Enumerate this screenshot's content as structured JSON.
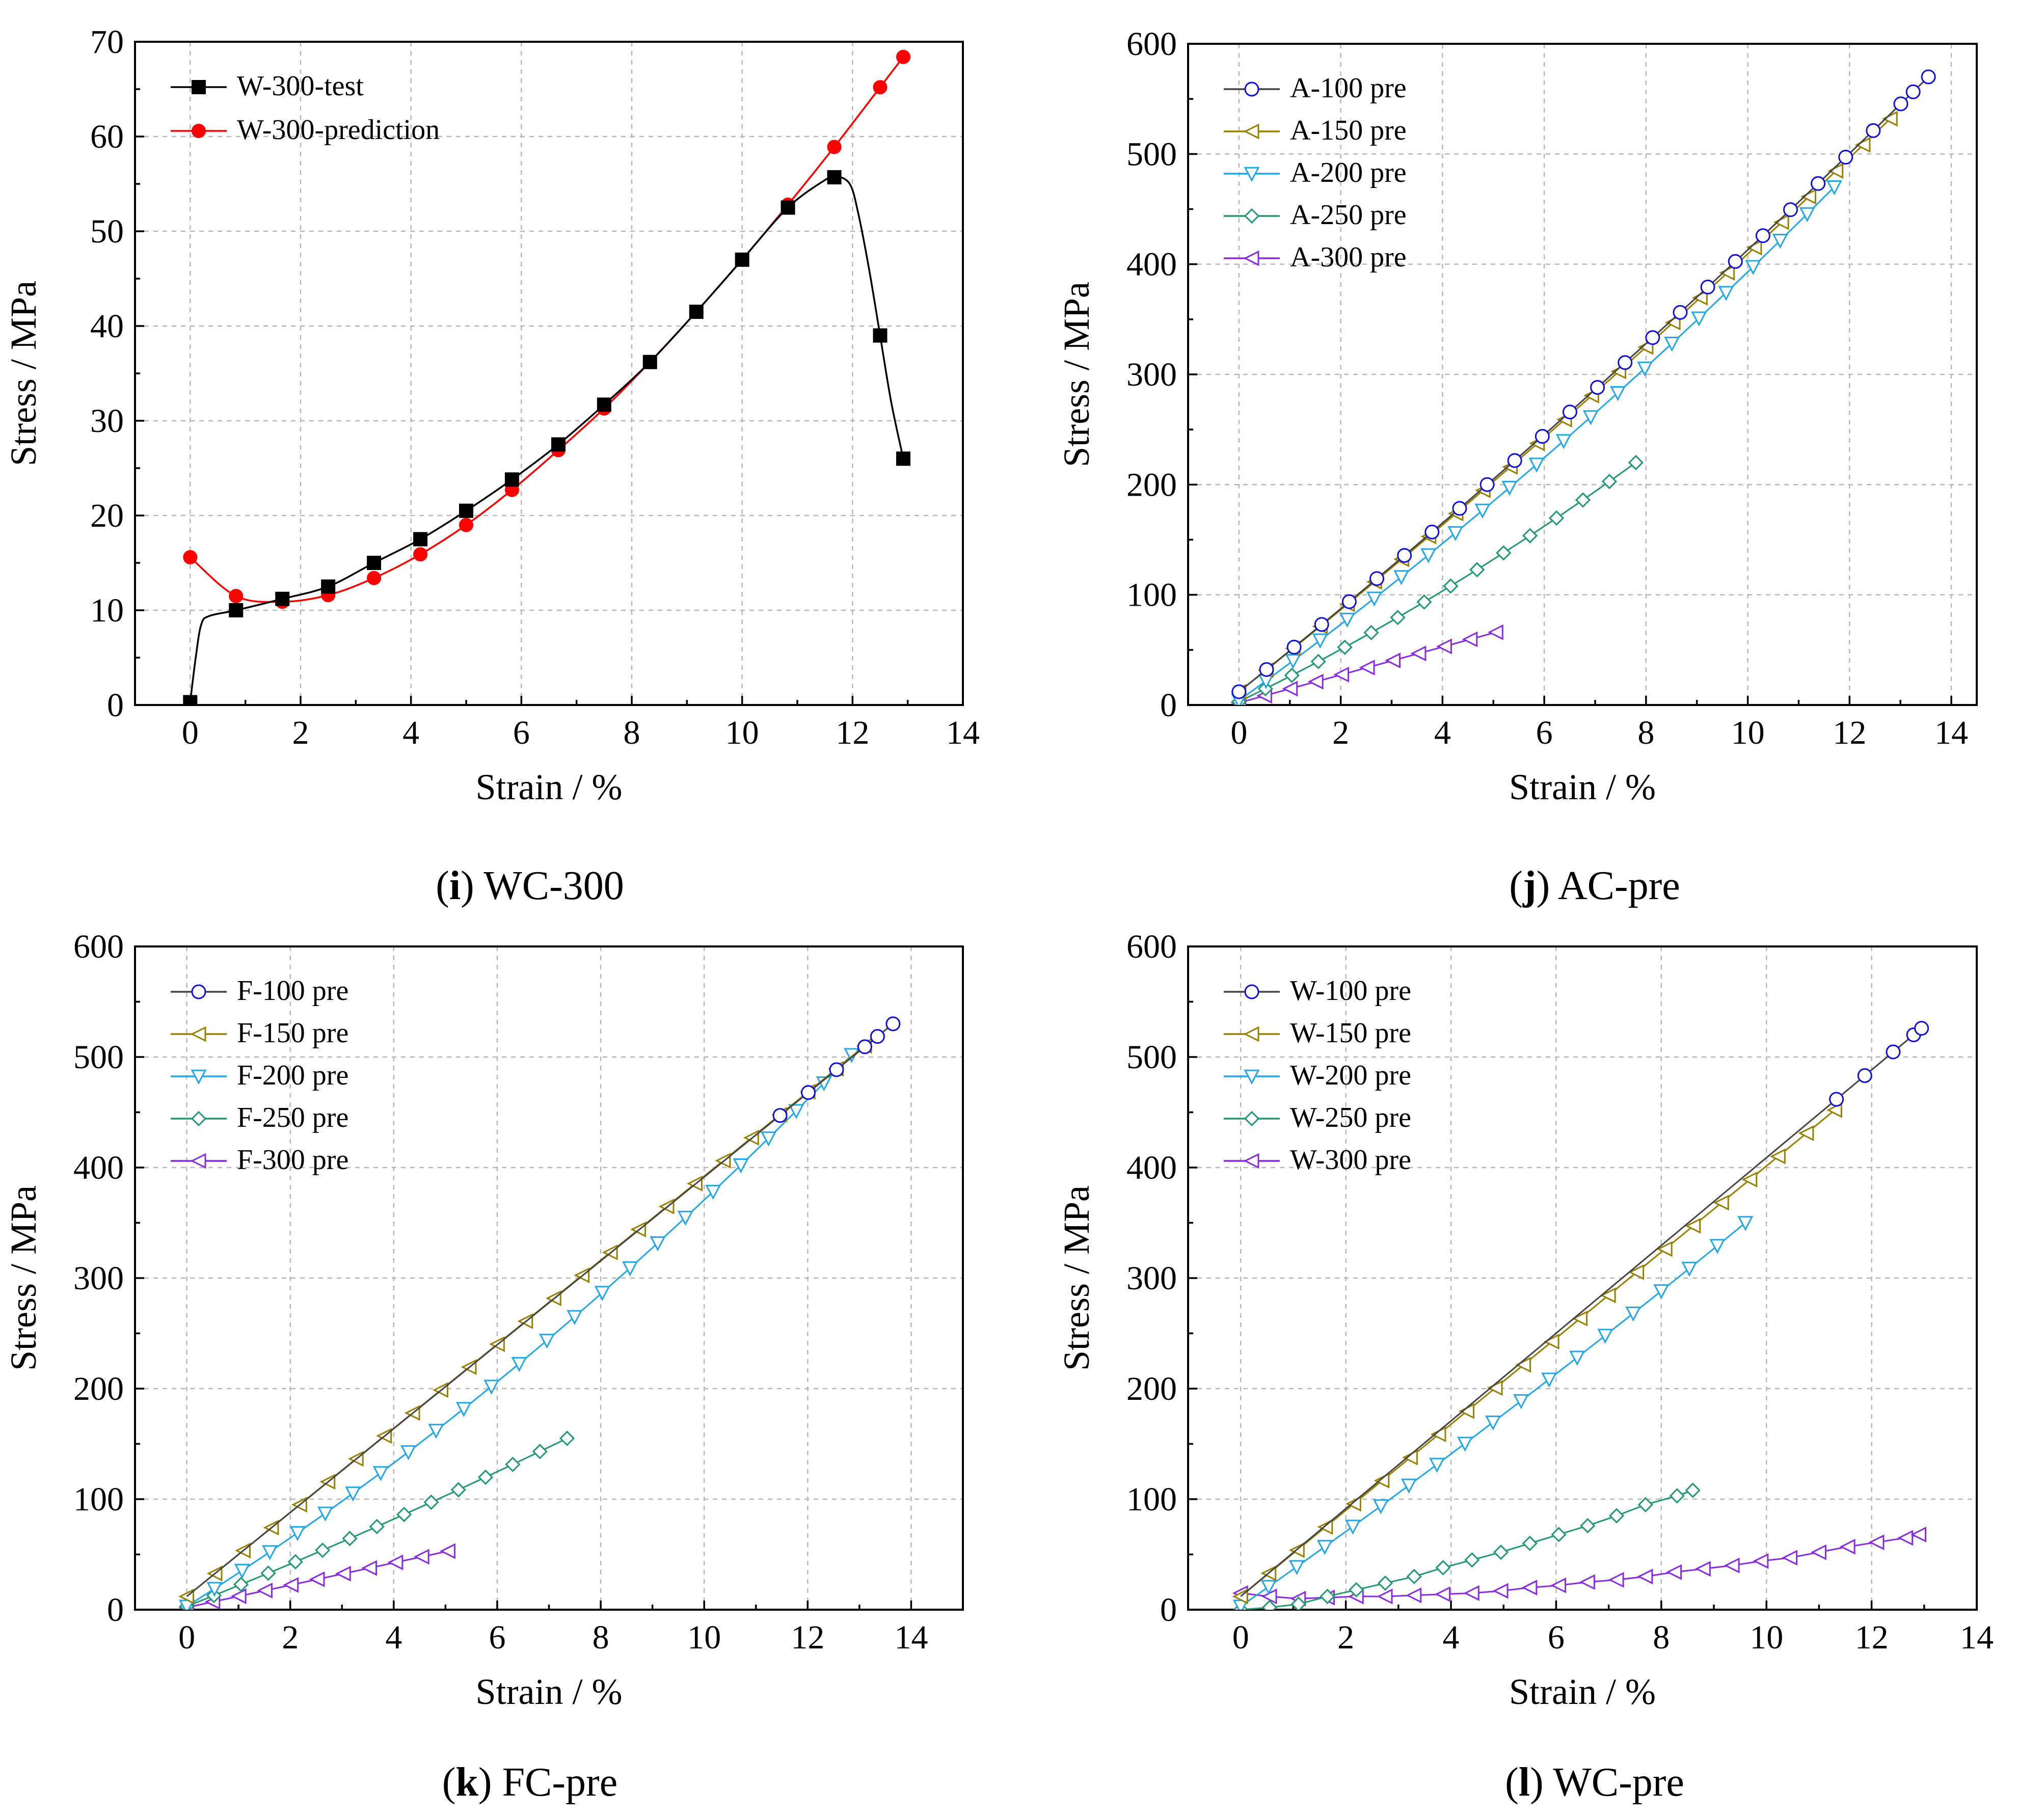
{
  "chart_data": [
    {
      "type": "line",
      "caption_letter": "i",
      "caption_text": "WC-300",
      "xlabel": "Strain / %",
      "ylabel": "Stress / MPa",
      "xlim": [
        -1,
        14
      ],
      "ylim": [
        0,
        70
      ],
      "xticks": [
        "0",
        "2",
        "4",
        "6",
        "8",
        "10",
        "12",
        "14"
      ],
      "yticks": [
        "0",
        "10",
        "20",
        "30",
        "40",
        "50",
        "60",
        "70"
      ],
      "grid": true,
      "legend_position": "top-left",
      "series": [
        {
          "name": "W-300-test",
          "color": "#000000",
          "marker": "square",
          "line": "smooth",
          "x": [
            0,
            0.83,
            1.67,
            2.5,
            3.33,
            4.17,
            5.0,
            5.83,
            6.67,
            7.5,
            8.33,
            9.17,
            10.0,
            10.83,
            11.67,
            12.5,
            12.92
          ],
          "y": [
            0.3,
            10,
            11.2,
            12.5,
            15,
            17.5,
            20.5,
            23.8,
            27.5,
            31.7,
            36.2,
            41.5,
            47,
            52.5,
            55.7,
            39,
            26
          ],
          "curve": [
            [
              0,
              0.3
            ],
            [
              0.1,
              5
            ],
            [
              0.2,
              8.5
            ],
            [
              0.35,
              9.4
            ],
            [
              0.83,
              10
            ],
            [
              1.67,
              11.2
            ],
            [
              2.5,
              12.5
            ],
            [
              3.33,
              15
            ],
            [
              4.17,
              17.5
            ],
            [
              5.0,
              20.5
            ],
            [
              5.83,
              23.8
            ],
            [
              6.67,
              27.5
            ],
            [
              7.5,
              31.7
            ],
            [
              8.33,
              36.2
            ],
            [
              9.17,
              41.5
            ],
            [
              10.0,
              47
            ],
            [
              10.83,
              52.5
            ],
            [
              11.5,
              55.4
            ],
            [
              11.7,
              55.8
            ],
            [
              11.95,
              55.0
            ],
            [
              12.1,
              52
            ],
            [
              12.3,
              46
            ],
            [
              12.5,
              39
            ],
            [
              12.7,
              32
            ],
            [
              12.92,
              26
            ]
          ]
        },
        {
          "name": "W-300-prediction",
          "color": "#ff0000",
          "marker": "circle-filled",
          "line": "smooth",
          "x": [
            0,
            0.83,
            1.67,
            2.5,
            3.33,
            4.17,
            5.0,
            5.83,
            6.67,
            7.5,
            8.33,
            9.17,
            10.0,
            10.83,
            11.67,
            12.5,
            12.92
          ],
          "y": [
            15.6,
            11.5,
            10.9,
            11.6,
            13.4,
            15.9,
            19.0,
            22.7,
            26.9,
            31.3,
            36.2,
            41.5,
            47.0,
            52.8,
            58.9,
            65.2,
            68.4
          ]
        }
      ]
    },
    {
      "type": "line",
      "caption_letter": "j",
      "caption_text": "AC-pre",
      "xlabel": "Strain / %",
      "ylabel": "Stress / MPa",
      "xlim": [
        -1,
        14.5
      ],
      "ylim": [
        0,
        600
      ],
      "xticks": [
        "0",
        "2",
        "4",
        "6",
        "8",
        "10",
        "12",
        "14"
      ],
      "yticks": [
        "0",
        "100",
        "200",
        "300",
        "400",
        "500",
        "600"
      ],
      "grid": true,
      "legend_position": "top-left",
      "series": [
        {
          "name": "A-100 pre",
          "color": "#1010d8",
          "marker": "circle",
          "x0": 0,
          "x1": 13.55,
          "y0": 12,
          "y1": 570,
          "curv": 0.05,
          "n": 25,
          "extra_x": [
            13.25
          ]
        },
        {
          "name": "A-150 pre",
          "color": "#998000",
          "marker": "tri-left",
          "x0": 0,
          "x1": 12.8,
          "y0": 12,
          "y1": 532,
          "curv": 0.05,
          "n": 24
        },
        {
          "name": "A-200 pre",
          "color": "#22a8e8",
          "marker": "tri-down",
          "x0": 0,
          "x1": 11.7,
          "y0": 4,
          "y1": 470,
          "curv": 0.08,
          "n": 22
        },
        {
          "name": "A-250 pre",
          "color": "#229970",
          "marker": "diamond",
          "x0": 0,
          "x1": 7.8,
          "y0": 3,
          "y1": 220,
          "curv": 0.1,
          "n": 15
        },
        {
          "name": "A-300 pre",
          "color": "#8a2be2",
          "marker": "tri-left",
          "x0": 0,
          "x1": 5.05,
          "y0": 2,
          "y1": 66,
          "curv": 0.0,
          "n": 10
        }
      ]
    },
    {
      "type": "line",
      "caption_letter": "k",
      "caption_text": "FC-pre",
      "xlabel": "Strain / %",
      "ylabel": "Stress / MPa",
      "xlim": [
        -1,
        15
      ],
      "ylim": [
        0,
        600
      ],
      "xticks": [
        "0",
        "2",
        "4",
        "6",
        "8",
        "10",
        "12",
        "14"
      ],
      "yticks": [
        "0",
        "100",
        "200",
        "300",
        "400",
        "500",
        "600"
      ],
      "grid": true,
      "legend_position": "top-left",
      "series": [
        {
          "name": "F-100 pre",
          "color": "#1010d8",
          "marker": "circle",
          "x0": 0,
          "x1": 13.65,
          "y0": 12,
          "y1": 530,
          "curv": 0.0,
          "n": 25,
          "tail_only_from": 11.0,
          "extra_x": [
            13.35
          ]
        },
        {
          "name": "F-150 pre",
          "color": "#998000",
          "marker": "tri-left",
          "x0": 0,
          "x1": 13.1,
          "y0": 12,
          "y1": 510,
          "curv": 0.0,
          "n": 24
        },
        {
          "name": "F-200 pre",
          "color": "#22a8e8",
          "marker": "tri-down",
          "x0": 0,
          "x1": 12.85,
          "y0": 3,
          "y1": 502,
          "curv": 0.12,
          "n": 24
        },
        {
          "name": "F-250 pre",
          "color": "#229970",
          "marker": "diamond",
          "x0": 0,
          "x1": 7.35,
          "y0": 3,
          "y1": 155,
          "curv": 0.05,
          "n": 14
        },
        {
          "name": "F-300 pre",
          "color": "#8a2be2",
          "marker": "tri-left",
          "x0": 0,
          "x1": 5.05,
          "y0": 2,
          "y1": 53,
          "curv": 0.0,
          "n": 10
        }
      ]
    },
    {
      "type": "line",
      "caption_letter": "l",
      "caption_text": "WC-pre",
      "xlabel": "Strain / %",
      "ylabel": "Stress / MPa",
      "xlim": [
        -1,
        14
      ],
      "ylim": [
        0,
        600
      ],
      "xticks": [
        "0",
        "2",
        "4",
        "6",
        "8",
        "10",
        "12",
        "14"
      ],
      "yticks": [
        "0",
        "100",
        "200",
        "300",
        "400",
        "500",
        "600"
      ],
      "grid": true,
      "legend_position": "top-left",
      "series": [
        {
          "name": "W-100 pre",
          "color": "#1010d8",
          "marker": "circle",
          "x0": 0,
          "x1": 12.95,
          "y0": 12,
          "y1": 526,
          "curv": 0.0,
          "n": 24,
          "tail_only_from": 11.2,
          "extra_x": [
            12.8
          ]
        },
        {
          "name": "W-150 pre",
          "color": "#998000",
          "marker": "tri-left",
          "x0": 0,
          "x1": 11.3,
          "y0": 12,
          "y1": 452,
          "curv": 0.0,
          "n": 21
        },
        {
          "name": "W-200 pre",
          "color": "#22a8e8",
          "marker": "tri-down",
          "x0": 0,
          "x1": 9.6,
          "y0": 3,
          "y1": 350,
          "curv": 0.04,
          "n": 18
        },
        {
          "name": "W-250 pre",
          "color": "#229970",
          "marker": "diamond",
          "x0": 0,
          "x1": 8.6,
          "y0": 0,
          "y1": 108,
          "curv": 0.0,
          "n": 16,
          "points_override": [
            [
              0,
              0
            ],
            [
              0.55,
              2
            ],
            [
              1.1,
              5
            ],
            [
              1.65,
              12
            ],
            [
              2.2,
              18
            ],
            [
              2.75,
              24
            ],
            [
              3.3,
              30
            ],
            [
              3.85,
              38
            ],
            [
              4.4,
              45
            ],
            [
              4.95,
              52
            ],
            [
              5.5,
              60
            ],
            [
              6.05,
              68
            ],
            [
              6.6,
              76
            ],
            [
              7.15,
              85
            ],
            [
              7.7,
              95
            ],
            [
              8.3,
              103
            ],
            [
              8.6,
              108
            ]
          ]
        },
        {
          "name": "W-300 pre",
          "color": "#8a2be2",
          "marker": "tri-left",
          "x0": 0,
          "x1": 12.9,
          "y0": 15,
          "y1": 70,
          "curv": 0.0,
          "n": 24,
          "points_override": [
            [
              0,
              15
            ],
            [
              0.55,
              12
            ],
            [
              1.1,
              10
            ],
            [
              1.65,
              11
            ],
            [
              2.2,
              12
            ],
            [
              2.75,
              12
            ],
            [
              3.3,
              13
            ],
            [
              3.85,
              14
            ],
            [
              4.4,
              15
            ],
            [
              4.95,
              17
            ],
            [
              5.5,
              20
            ],
            [
              6.05,
              22
            ],
            [
              6.6,
              25
            ],
            [
              7.15,
              27
            ],
            [
              7.7,
              30
            ],
            [
              8.25,
              34
            ],
            [
              8.8,
              37
            ],
            [
              9.35,
              40
            ],
            [
              9.9,
              44
            ],
            [
              10.45,
              47
            ],
            [
              11.0,
              52
            ],
            [
              11.55,
              57
            ],
            [
              12.1,
              61
            ],
            [
              12.65,
              65
            ],
            [
              12.9,
              68
            ]
          ]
        }
      ]
    }
  ]
}
